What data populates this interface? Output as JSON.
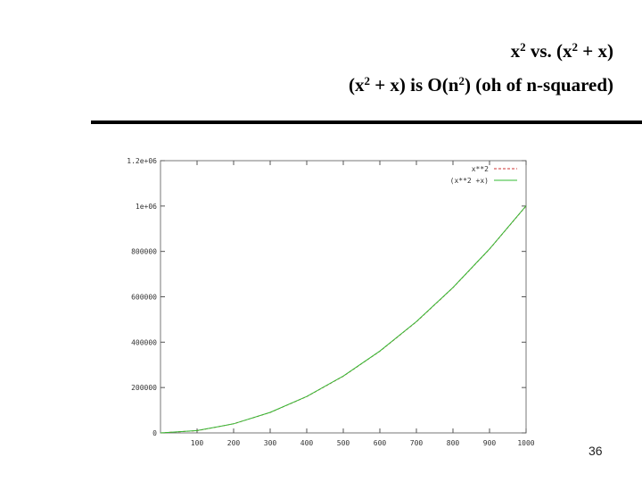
{
  "slide": {
    "title_line1": {
      "a": "x",
      "a_sup": "2",
      "b": " vs. (x",
      "b_sup": "2",
      "c": " + x)"
    },
    "title_line2": {
      "a": "(x",
      "a_sup": "2",
      "b": " + x) is O(n",
      "b_sup": "2",
      "c": ") (oh of n-squared)"
    },
    "page_number": "36"
  },
  "chart_data": {
    "type": "line",
    "title": "",
    "xlabel": "",
    "ylabel": "",
    "xlim": [
      0,
      1000
    ],
    "ylim": [
      0,
      1200000
    ],
    "x_ticks": [
      100,
      200,
      300,
      400,
      500,
      600,
      700,
      800,
      900,
      1000
    ],
    "x_tick_labels": [
      "100",
      "200",
      "300",
      "400",
      "500",
      "600",
      "700",
      "800",
      "900",
      "1000"
    ],
    "y_ticks": [
      0,
      200000,
      400000,
      600000,
      800000,
      1000000,
      1200000
    ],
    "y_tick_labels": [
      "0",
      "200000",
      "400000",
      "600000",
      "800000",
      "1e+06",
      "1.2e+06"
    ],
    "grid": false,
    "legend_position": "top-right",
    "series": [
      {
        "name": "x**2",
        "color": "#cc3333",
        "x": [
          0,
          100,
          200,
          300,
          400,
          500,
          600,
          700,
          800,
          900,
          1000
        ],
        "y": [
          0,
          10000,
          40000,
          90000,
          160000,
          250000,
          360000,
          490000,
          640000,
          810000,
          1000000
        ]
      },
      {
        "name": "(x**2 +x)",
        "color": "#33bb33",
        "x": [
          0,
          100,
          200,
          300,
          400,
          500,
          600,
          700,
          800,
          900,
          1000
        ],
        "y": [
          0,
          10100,
          40200,
          90300,
          160400,
          250500,
          360600,
          490700,
          640800,
          810900,
          1001000
        ]
      }
    ]
  }
}
